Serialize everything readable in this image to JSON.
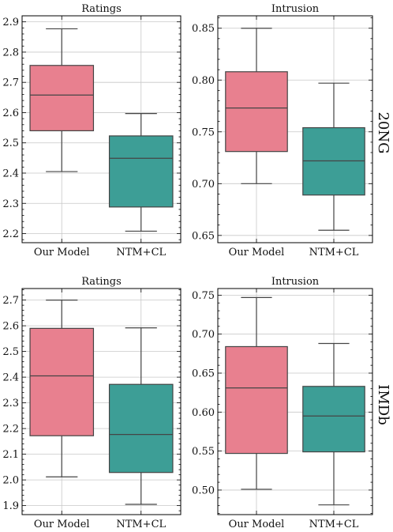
{
  "colors": {
    "our_model": "#e8808f",
    "ntm_cl": "#3d9e96",
    "line": "#444444"
  },
  "row_labels": [
    "20NG",
    "IMDb"
  ],
  "chart_data": [
    {
      "type": "box",
      "title": "Ratings",
      "row": "20NG",
      "categories": [
        "Our Model",
        "NTM+CL"
      ],
      "ylim": [
        2.17,
        2.92
      ],
      "yticks": [
        2.2,
        2.3,
        2.4,
        2.5,
        2.6,
        2.7,
        2.8,
        2.9
      ],
      "ytick_labels": [
        "2.2",
        "2.3",
        "2.4",
        "2.5",
        "2.6",
        "2.7",
        "2.8",
        "2.9"
      ],
      "grid": true,
      "series": [
        {
          "category": "Our Model",
          "whisker_low": 2.405,
          "q1": 2.54,
          "median": 2.658,
          "q3": 2.756,
          "whisker_high": 2.877
        },
        {
          "category": "NTM+CL",
          "whisker_low": 2.208,
          "q1": 2.288,
          "median": 2.449,
          "q3": 2.523,
          "whisker_high": 2.597
        }
      ]
    },
    {
      "type": "box",
      "title": "Intrusion",
      "row": "20NG",
      "categories": [
        "Our Model",
        "NTM+CL"
      ],
      "ylim": [
        0.643,
        0.862
      ],
      "yticks": [
        0.65,
        0.7,
        0.75,
        0.8,
        0.85
      ],
      "ytick_labels": [
        "0.65",
        "0.70",
        "0.75",
        "0.80",
        "0.85"
      ],
      "grid": true,
      "series": [
        {
          "category": "Our Model",
          "whisker_low": 0.7,
          "q1": 0.731,
          "median": 0.773,
          "q3": 0.808,
          "whisker_high": 0.85
        },
        {
          "category": "NTM+CL",
          "whisker_low": 0.655,
          "q1": 0.689,
          "median": 0.722,
          "q3": 0.754,
          "whisker_high": 0.797
        }
      ]
    },
    {
      "type": "box",
      "title": "Ratings",
      "row": "IMDb",
      "categories": [
        "Our Model",
        "NTM+CL"
      ],
      "ylim": [
        1.865,
        2.745
      ],
      "yticks": [
        1.9,
        2.0,
        2.1,
        2.2,
        2.3,
        2.4,
        2.5,
        2.6,
        2.7
      ],
      "ytick_labels": [
        "1.9",
        "2.0",
        "2.1",
        "2.2",
        "2.3",
        "2.4",
        "2.5",
        "2.6",
        "2.7"
      ],
      "grid": true,
      "series": [
        {
          "category": "Our Model",
          "whisker_low": 2.012,
          "q1": 2.172,
          "median": 2.405,
          "q3": 2.59,
          "whisker_high": 2.7
        },
        {
          "category": "NTM+CL",
          "whisker_low": 1.905,
          "q1": 2.029,
          "median": 2.177,
          "q3": 2.372,
          "whisker_high": 2.592
        }
      ]
    },
    {
      "type": "box",
      "title": "Intrusion",
      "row": "IMDb",
      "categories": [
        "Our Model",
        "NTM+CL"
      ],
      "ylim": [
        0.4685,
        0.7585
      ],
      "yticks": [
        0.5,
        0.55,
        0.6,
        0.65,
        0.7,
        0.75
      ],
      "ytick_labels": [
        "0.50",
        "0.55",
        "0.60",
        "0.65",
        "0.70",
        "0.75"
      ],
      "grid": true,
      "series": [
        {
          "category": "Our Model",
          "whisker_low": 0.501,
          "q1": 0.547,
          "median": 0.631,
          "q3": 0.684,
          "whisker_high": 0.747
        },
        {
          "category": "NTM+CL",
          "whisker_low": 0.481,
          "q1": 0.549,
          "median": 0.595,
          "q3": 0.633,
          "whisker_high": 0.688
        }
      ]
    }
  ]
}
